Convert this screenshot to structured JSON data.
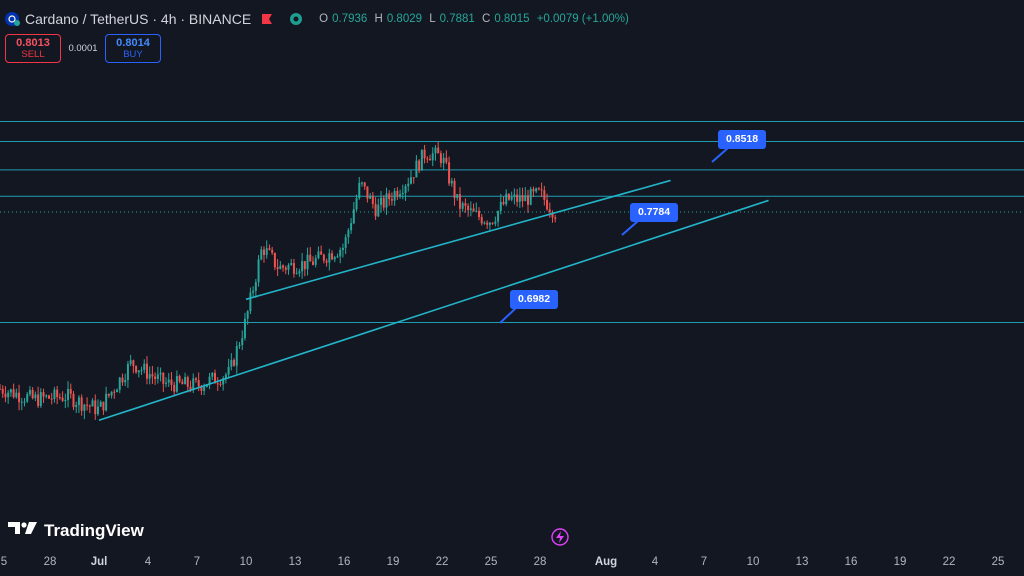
{
  "header": {
    "title": "Cardano / TetherUS · 4h · BINANCE",
    "open_label": "O",
    "open_value": "0.7936",
    "high_label": "H",
    "high_value": "0.8029",
    "low_label": "L",
    "low_value": "0.7881",
    "close_label": "C",
    "close_value": "0.8015",
    "change": "+0.0079 (+1.00%)",
    "icons": [
      "cardano-symbol-icon",
      "flag-icon",
      "eye-icon"
    ]
  },
  "trade": {
    "sell_price": "0.8013",
    "sell_label": "SELL",
    "spread": "0.0001",
    "buy_price": "0.8014",
    "buy_label": "BUY"
  },
  "callouts": [
    "0.8518",
    "0.7784",
    "0.6982"
  ],
  "x_axis": {
    "labels": [
      "5",
      "28",
      "Jul",
      "4",
      "7",
      "10",
      "13",
      "16",
      "19",
      "22",
      "25",
      "28",
      "Aug",
      "4",
      "7",
      "10",
      "13",
      "16",
      "19",
      "22",
      "25"
    ]
  },
  "logo": {
    "text": "TradingView"
  },
  "colors": {
    "background": "#131722",
    "up": "#26a69a",
    "down": "#ef5350",
    "lines": "#22b5c9",
    "callout": "#2962ff"
  },
  "chart_data": {
    "type": "candlestick",
    "symbol": "Cardano / TetherUS",
    "timeframe": "4h",
    "exchange": "BINANCE",
    "horizontal_levels": [
      0.889,
      0.87,
      0.843,
      0.818,
      0.803,
      0.698
    ],
    "trendlines": [
      {
        "from": [
          "Jul 10",
          0.72
        ],
        "to": [
          "Aug 5",
          0.833
        ]
      },
      {
        "from": [
          "Jul 1",
          0.605
        ],
        "to": [
          "Aug 11",
          0.814
        ]
      }
    ],
    "labeled_prices": [
      0.8518,
      0.7784,
      0.6982
    ],
    "candles_approx": [
      {
        "date": "Jun 25",
        "close": 0.635
      },
      {
        "date": "Jun 27",
        "close": 0.625
      },
      {
        "date": "Jun 29",
        "close": 0.628
      },
      {
        "date": "Jul 1",
        "close": 0.615
      },
      {
        "date": "Jul 3",
        "close": 0.66
      },
      {
        "date": "Jul 5",
        "close": 0.64
      },
      {
        "date": "Jul 7",
        "close": 0.638
      },
      {
        "date": "Jul 9",
        "close": 0.65
      },
      {
        "date": "Jul 10",
        "close": 0.7
      },
      {
        "date": "Jul 11",
        "close": 0.77
      },
      {
        "date": "Jul 12",
        "close": 0.75
      },
      {
        "date": "Jul 14",
        "close": 0.755
      },
      {
        "date": "Jul 16",
        "close": 0.77
      },
      {
        "date": "Jul 17",
        "close": 0.83
      },
      {
        "date": "Jul 18",
        "close": 0.805
      },
      {
        "date": "Jul 20",
        "close": 0.835
      },
      {
        "date": "Jul 21",
        "close": 0.86
      },
      {
        "date": "Jul 22",
        "close": 0.855
      },
      {
        "date": "Jul 23",
        "close": 0.81
      },
      {
        "date": "Jul 24",
        "close": 0.8
      },
      {
        "date": "Jul 25",
        "close": 0.795
      },
      {
        "date": "Jul 26",
        "close": 0.815
      },
      {
        "date": "Jul 27",
        "close": 0.815
      },
      {
        "date": "Jul 28",
        "close": 0.82
      },
      {
        "date": "Jul 29",
        "close": 0.8015
      }
    ]
  }
}
